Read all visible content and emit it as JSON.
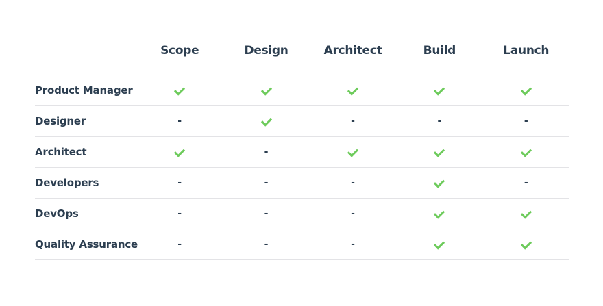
{
  "colors": {
    "text": "#2c3e50",
    "check": "#6dcb5b",
    "divider": "#e3e3e6"
  },
  "columns": [
    "Scope",
    "Design",
    "Architect",
    "Build",
    "Launch"
  ],
  "rows": [
    {
      "label": "Product Manager",
      "values": [
        true,
        true,
        true,
        true,
        true
      ]
    },
    {
      "label": "Designer",
      "values": [
        false,
        true,
        false,
        false,
        false
      ]
    },
    {
      "label": "Architect",
      "values": [
        true,
        false,
        true,
        true,
        true
      ]
    },
    {
      "label": "Developers",
      "values": [
        false,
        false,
        false,
        true,
        false
      ]
    },
    {
      "label": "DevOps",
      "values": [
        false,
        false,
        false,
        true,
        true
      ]
    },
    {
      "label": "Quality Assurance",
      "values": [
        false,
        false,
        false,
        true,
        true
      ]
    }
  ],
  "empty_marker": "-"
}
